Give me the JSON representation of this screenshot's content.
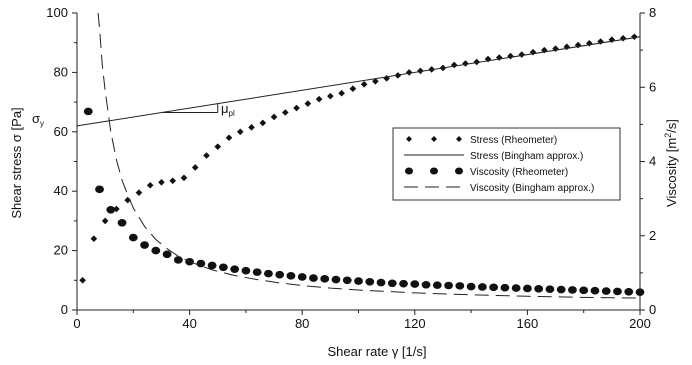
{
  "chart_data": {
    "type": "scatter",
    "title": "",
    "xlabel": "Shear rate γ [1/s]",
    "ylabel": "Shear stress σ [Pa]",
    "y2label": "Viscosity [m²/s]",
    "y2label_base": "Viscosity [m",
    "y2label_sup": "2",
    "y2label_end": "/s]",
    "xlim": [
      0,
      200
    ],
    "ylim": [
      0,
      100
    ],
    "y2lim": [
      0,
      8
    ],
    "xticks": [
      "0",
      "40",
      "80",
      "120",
      "160",
      "200"
    ],
    "yticks": [
      "0",
      "20",
      "40",
      "60",
      "80",
      "100"
    ],
    "y2ticks": [
      "0",
      "2",
      "4",
      "6",
      "8"
    ],
    "grid": false,
    "legend_position": "center-right",
    "annotations": {
      "yield_label": "σ",
      "yield_sub": "y",
      "pl_label": "μ",
      "pl_sub": "pl"
    },
    "series": [
      {
        "name": "Stress (Rheometer)",
        "axis": "left",
        "style": "diamond-markers",
        "x": [
          2,
          6,
          10,
          14,
          18,
          22,
          26,
          30,
          34,
          38,
          42,
          46,
          50,
          54,
          58,
          62,
          66,
          70,
          74,
          78,
          82,
          86,
          90,
          94,
          98,
          102,
          106,
          110,
          114,
          118,
          122,
          126,
          130,
          134,
          138,
          142,
          146,
          150,
          154,
          158,
          162,
          166,
          170,
          174,
          178,
          182,
          186,
          190,
          194,
          198
        ],
        "y": [
          10,
          24,
          30,
          34,
          37,
          39.5,
          42,
          43,
          43.5,
          44.5,
          48,
          52,
          55,
          58,
          60,
          61.5,
          63,
          65,
          66.5,
          68,
          69.5,
          71,
          72,
          73,
          74.5,
          76,
          77,
          78,
          79,
          80,
          80.5,
          81,
          81.5,
          82.5,
          83,
          83.5,
          84.5,
          85,
          85.5,
          86,
          86.8,
          87.5,
          88,
          88.6,
          89.2,
          89.8,
          90.4,
          91,
          91.5,
          92
        ]
      },
      {
        "name": "Stress (Bingham approx.)",
        "axis": "left",
        "style": "solid-line",
        "x": [
          0,
          200
        ],
        "y": [
          62,
          92
        ]
      },
      {
        "name": "Viscosity (Rheometer)",
        "axis": "right",
        "style": "square-markers",
        "x": [
          4,
          8,
          12,
          16,
          20,
          24,
          28,
          32,
          36,
          40,
          44,
          48,
          52,
          56,
          60,
          64,
          68,
          72,
          76,
          80,
          84,
          88,
          92,
          96,
          100,
          104,
          108,
          112,
          116,
          120,
          124,
          128,
          132,
          136,
          140,
          144,
          148,
          152,
          156,
          160,
          164,
          168,
          172,
          176,
          180,
          184,
          188,
          192,
          196,
          200
        ],
        "y": [
          5.35,
          3.25,
          2.7,
          2.35,
          1.95,
          1.75,
          1.6,
          1.5,
          1.35,
          1.3,
          1.25,
          1.2,
          1.15,
          1.1,
          1.06,
          1.02,
          0.98,
          0.95,
          0.92,
          0.89,
          0.86,
          0.84,
          0.82,
          0.8,
          0.78,
          0.76,
          0.74,
          0.72,
          0.71,
          0.7,
          0.68,
          0.67,
          0.66,
          0.65,
          0.63,
          0.62,
          0.61,
          0.6,
          0.59,
          0.58,
          0.57,
          0.56,
          0.55,
          0.54,
          0.53,
          0.52,
          0.51,
          0.5,
          0.49,
          0.48
        ]
      },
      {
        "name": "Viscosity (Bingham approx.)",
        "axis": "right",
        "style": "dashed-line",
        "x": [
          7.5,
          8,
          9,
          10,
          12,
          14,
          16,
          18,
          20,
          24,
          28,
          32,
          36,
          40,
          48,
          56,
          64,
          72,
          80,
          90,
          100,
          120,
          140,
          160,
          180,
          200
        ],
        "y": [
          8,
          7.6,
          6.6,
          5.9,
          4.8,
          4.05,
          3.5,
          3.1,
          2.75,
          2.25,
          1.9,
          1.65,
          1.45,
          1.3,
          1.08,
          0.93,
          0.82,
          0.73,
          0.66,
          0.59,
          0.54,
          0.46,
          0.41,
          0.37,
          0.34,
          0.32
        ]
      }
    ]
  }
}
